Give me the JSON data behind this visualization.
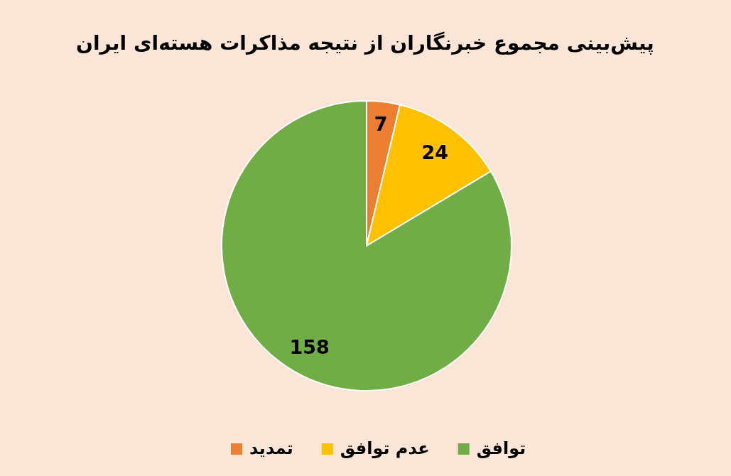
{
  "chart_data": {
    "type": "pie",
    "title": "پیش‌بینی مجموع خبرنگاران از نتیجه مذاکرات هسته‌ای ایران",
    "categories": [
      "تمدید",
      "عدم توافق",
      "توافق"
    ],
    "values": [
      7,
      24,
      158
    ],
    "colors": [
      "#ed7d31",
      "#ffc000",
      "#70ad47"
    ],
    "data_labels": true,
    "legend": "bottom"
  }
}
